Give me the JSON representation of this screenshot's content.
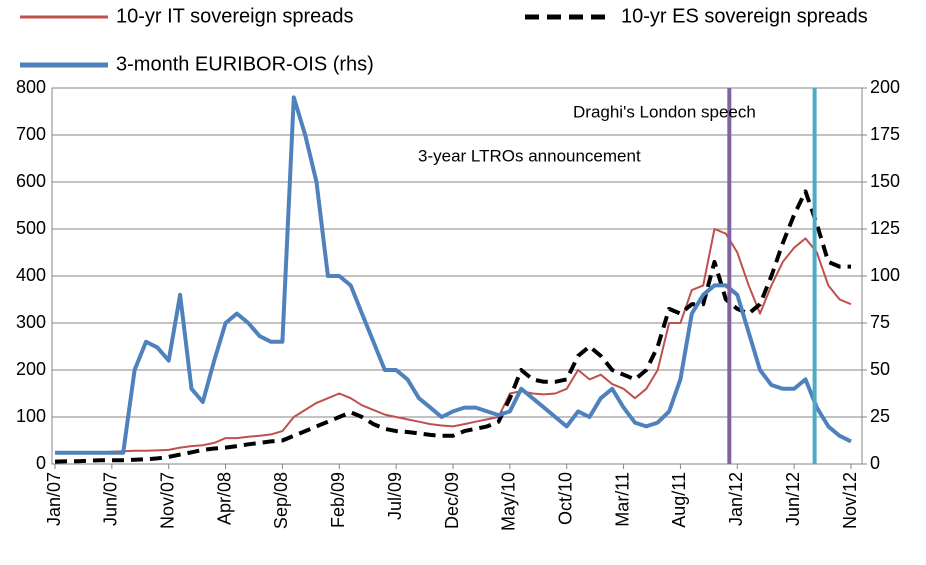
{
  "chart_data": {
    "type": "line",
    "categories": [
      "Jan/07",
      null,
      null,
      null,
      null,
      "Jun/07",
      null,
      null,
      null,
      null,
      "Nov/07",
      null,
      null,
      null,
      null,
      "Apr/08",
      null,
      null,
      null,
      null,
      "Sep/08",
      null,
      null,
      null,
      null,
      "Feb/09",
      null,
      null,
      null,
      null,
      "Jul/09",
      null,
      null,
      null,
      null,
      "Dec/09",
      null,
      null,
      null,
      null,
      "May/10",
      null,
      null,
      null,
      null,
      "Oct/10",
      null,
      null,
      null,
      null,
      "Mar/11",
      null,
      null,
      null,
      null,
      "Aug/11",
      null,
      null,
      null,
      null,
      "Jan/12",
      null,
      null,
      null,
      null,
      "Jun/12",
      null,
      null,
      null,
      null,
      "Nov/12"
    ],
    "series": [
      {
        "name": "10-yr IT sovereign spreads",
        "color": "#c0504d",
        "axis": "y",
        "values": [
          25,
          25,
          24,
          25,
          25,
          26,
          27,
          28,
          28,
          29,
          30,
          35,
          38,
          40,
          45,
          55,
          55,
          58,
          60,
          63,
          70,
          100,
          115,
          130,
          140,
          150,
          140,
          125,
          115,
          105,
          100,
          95,
          90,
          85,
          82,
          80,
          85,
          90,
          95,
          100,
          150,
          155,
          150,
          148,
          150,
          160,
          200,
          180,
          190,
          170,
          160,
          140,
          160,
          200,
          300,
          300,
          370,
          380,
          500,
          490,
          450,
          380,
          320,
          380,
          430,
          460,
          480,
          450,
          380,
          350,
          340
        ]
      },
      {
        "name": "10-yr ES sovereign spreads",
        "color": "#000000",
        "axis": "y",
        "values": [
          5,
          6,
          6,
          7,
          8,
          8,
          8,
          9,
          10,
          12,
          15,
          20,
          25,
          30,
          33,
          35,
          38,
          42,
          45,
          48,
          50,
          60,
          70,
          80,
          90,
          100,
          110,
          100,
          85,
          75,
          70,
          68,
          65,
          62,
          60,
          60,
          70,
          75,
          80,
          90,
          140,
          200,
          180,
          175,
          175,
          180,
          230,
          250,
          230,
          200,
          190,
          180,
          200,
          250,
          330,
          320,
          340,
          340,
          430,
          350,
          330,
          320,
          340,
          400,
          470,
          530,
          580,
          510,
          430,
          420,
          420
        ]
      },
      {
        "name": "3-month EURIBOR-OIS (rhs)",
        "color": "#4f81bd",
        "axis": "y2",
        "values": [
          6,
          6,
          6,
          6,
          6,
          6,
          6,
          50,
          65,
          62,
          55,
          90,
          40,
          33,
          55,
          75,
          80,
          75,
          68,
          65,
          65,
          195,
          175,
          150,
          100,
          100,
          95,
          80,
          65,
          50,
          50,
          45,
          35,
          30,
          25,
          28,
          30,
          30,
          28,
          26,
          28,
          40,
          35,
          30,
          25,
          20,
          28,
          25,
          35,
          40,
          30,
          22,
          20,
          22,
          28,
          45,
          80,
          90,
          95,
          95,
          90,
          70,
          50,
          42,
          40,
          40,
          45,
          30,
          20,
          15,
          12
        ]
      }
    ],
    "ylim": [
      0,
      800
    ],
    "yticks": [
      0,
      100,
      200,
      300,
      400,
      500,
      600,
      700,
      800
    ],
    "y2lim": [
      0,
      200
    ],
    "y2ticks": [
      0,
      25,
      50,
      75,
      100,
      125,
      150,
      175,
      200
    ],
    "grid": true,
    "annotations": [
      {
        "text": "3-year LTROs announcement",
        "x": 59.3,
        "color": "#8064a2"
      },
      {
        "text": "Draghi's London speech",
        "x": 66.8,
        "color": "#4bacc6"
      }
    ]
  }
}
